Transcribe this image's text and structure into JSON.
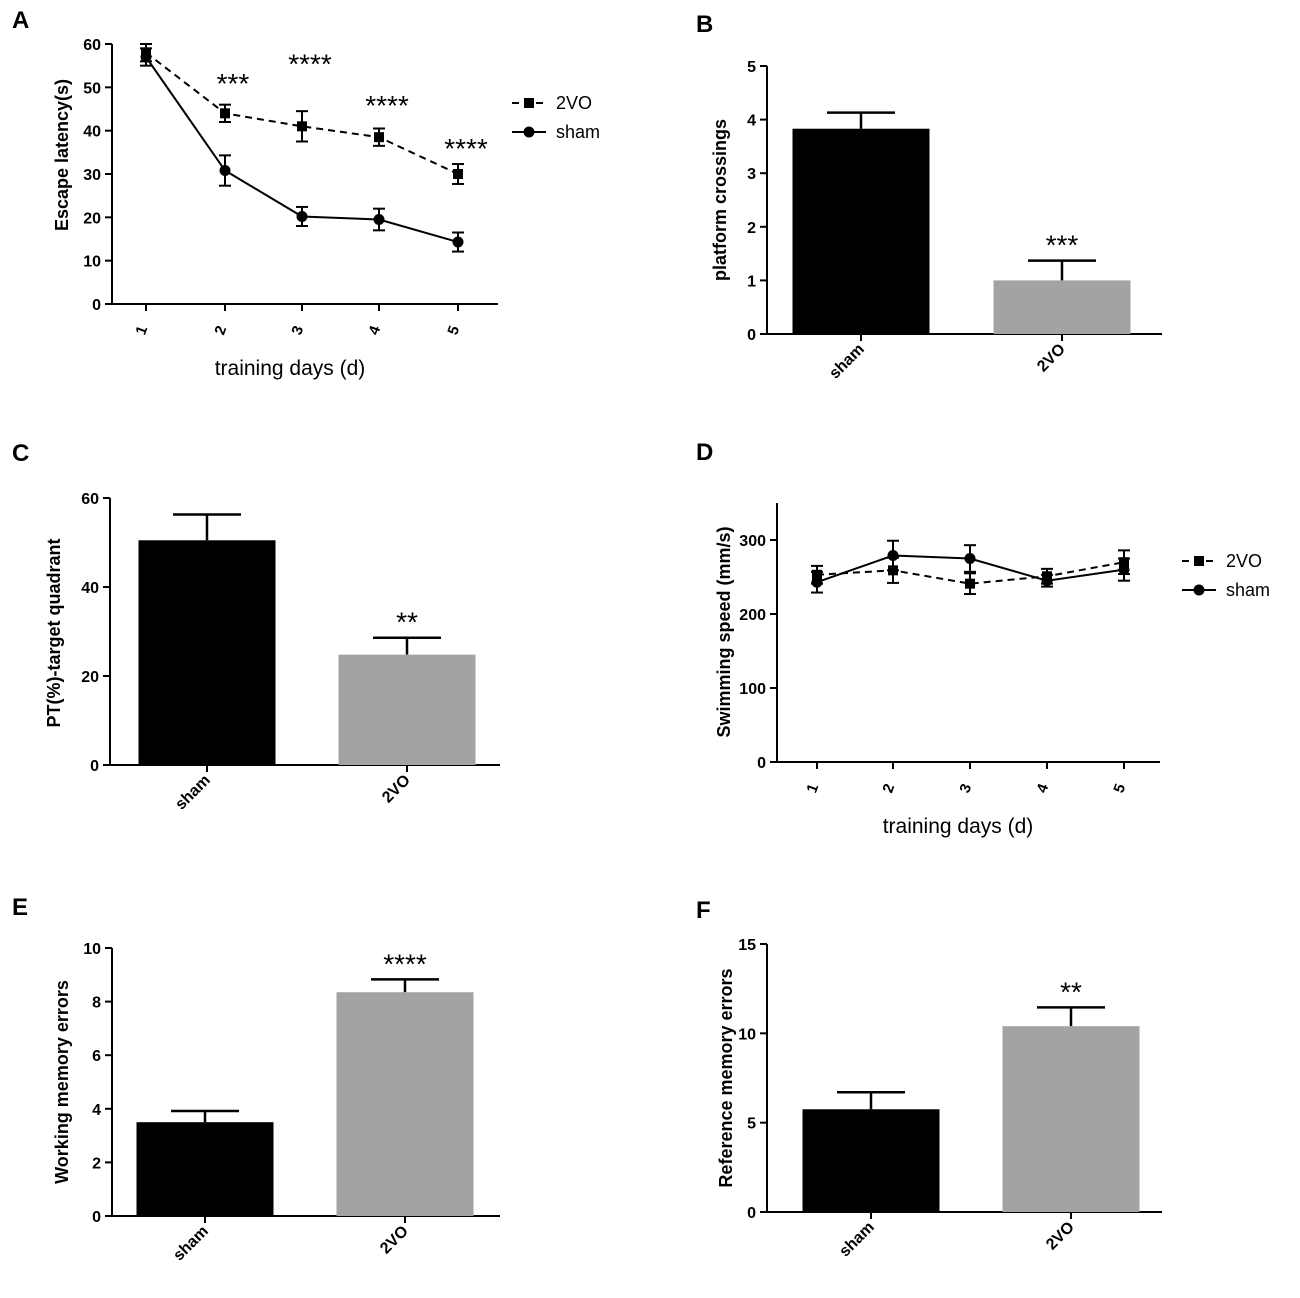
{
  "figure": {
    "colors": {
      "ink": "#000000",
      "sham_bar": "#000000",
      "vo_bar": "#a3a3a5"
    }
  },
  "chart_data": [
    {
      "panel": "A",
      "type": "line",
      "xlabel": "training days (d)",
      "ylabel": "Escape latency(s)",
      "categories": [
        "1",
        "2",
        "3",
        "4",
        "5"
      ],
      "ylim": [
        0,
        60
      ],
      "yticks": [
        0,
        10,
        20,
        30,
        40,
        50,
        60
      ],
      "series": [
        {
          "name": "2VO",
          "style": "dashed",
          "marker": "square",
          "values": [
            58,
            44,
            41,
            38.5,
            30
          ],
          "errors": [
            2,
            2,
            3.5,
            2,
            2.3
          ]
        },
        {
          "name": "sham",
          "style": "solid",
          "marker": "circle",
          "values": [
            57,
            30.8,
            20.2,
            19.5,
            14.3
          ],
          "errors": [
            2,
            3.5,
            2.2,
            2.5,
            2.2
          ]
        }
      ],
      "annotations": [
        {
          "text": "***",
          "x": "2",
          "y": 50.5
        },
        {
          "text": "****",
          "x": "3",
          "y": 55
        },
        {
          "text": "****",
          "x": "4",
          "y": 45.5
        },
        {
          "text": "****",
          "x": "5",
          "y": 35.5
        }
      ],
      "legend": "right"
    },
    {
      "panel": "B",
      "type": "bar",
      "ylabel": "platform crossings",
      "categories": [
        "sham",
        "2VO"
      ],
      "values": [
        3.83,
        1.0
      ],
      "errors": [
        0.3,
        0.37
      ],
      "colors": [
        "#000000",
        "#a3a3a5"
      ],
      "ylim": [
        0,
        5
      ],
      "yticks": [
        0,
        1,
        2,
        3,
        4,
        5
      ],
      "annotations": [
        {
          "text": "***",
          "category": "2VO"
        }
      ]
    },
    {
      "panel": "C",
      "type": "bar",
      "ylabel": "PT(%)-target quadrant",
      "categories": [
        "sham",
        "2VO"
      ],
      "values": [
        50.5,
        24.8
      ],
      "errors": [
        5.8,
        3.8
      ],
      "colors": [
        "#000000",
        "#a3a3a5"
      ],
      "ylim": [
        0,
        60
      ],
      "yticks": [
        0,
        20,
        40,
        60
      ],
      "annotations": [
        {
          "text": "**",
          "category": "2VO"
        }
      ]
    },
    {
      "panel": "D",
      "type": "line",
      "xlabel": "training days (d)",
      "ylabel": "Swimming speed (mm/s)",
      "categories": [
        "1",
        "2",
        "3",
        "4",
        "5"
      ],
      "ylim": [
        0,
        350
      ],
      "yticks": [
        0,
        100,
        200,
        300
      ],
      "series": [
        {
          "name": "2VO",
          "style": "dashed",
          "marker": "square",
          "values": [
            253,
            259,
            241,
            251,
            270
          ],
          "errors": [
            12,
            17,
            14,
            10,
            16
          ]
        },
        {
          "name": "sham",
          "style": "solid",
          "marker": "circle",
          "values": [
            243,
            279,
            275,
            245,
            260
          ],
          "errors": [
            14,
            20,
            18,
            8,
            15
          ]
        }
      ],
      "legend": "right"
    },
    {
      "panel": "E",
      "type": "bar",
      "ylabel": "Working memory errors",
      "categories": [
        "sham",
        "2VO"
      ],
      "values": [
        3.5,
        8.35
      ],
      "errors": [
        0.42,
        0.48
      ],
      "colors": [
        "#000000",
        "#a3a3a5"
      ],
      "ylim": [
        0,
        10
      ],
      "yticks": [
        0,
        2,
        4,
        6,
        8,
        10
      ],
      "annotations": [
        {
          "text": "****",
          "category": "2VO"
        }
      ]
    },
    {
      "panel": "F",
      "type": "bar",
      "ylabel": "Reference memory errors",
      "categories": [
        "sham",
        "2VO"
      ],
      "values": [
        5.75,
        10.4
      ],
      "errors": [
        0.95,
        1.05
      ],
      "colors": [
        "#000000",
        "#a3a3a5"
      ],
      "ylim": [
        0,
        15
      ],
      "yticks": [
        0,
        5,
        10,
        15
      ],
      "annotations": [
        {
          "text": "**",
          "category": "2VO"
        }
      ]
    }
  ]
}
